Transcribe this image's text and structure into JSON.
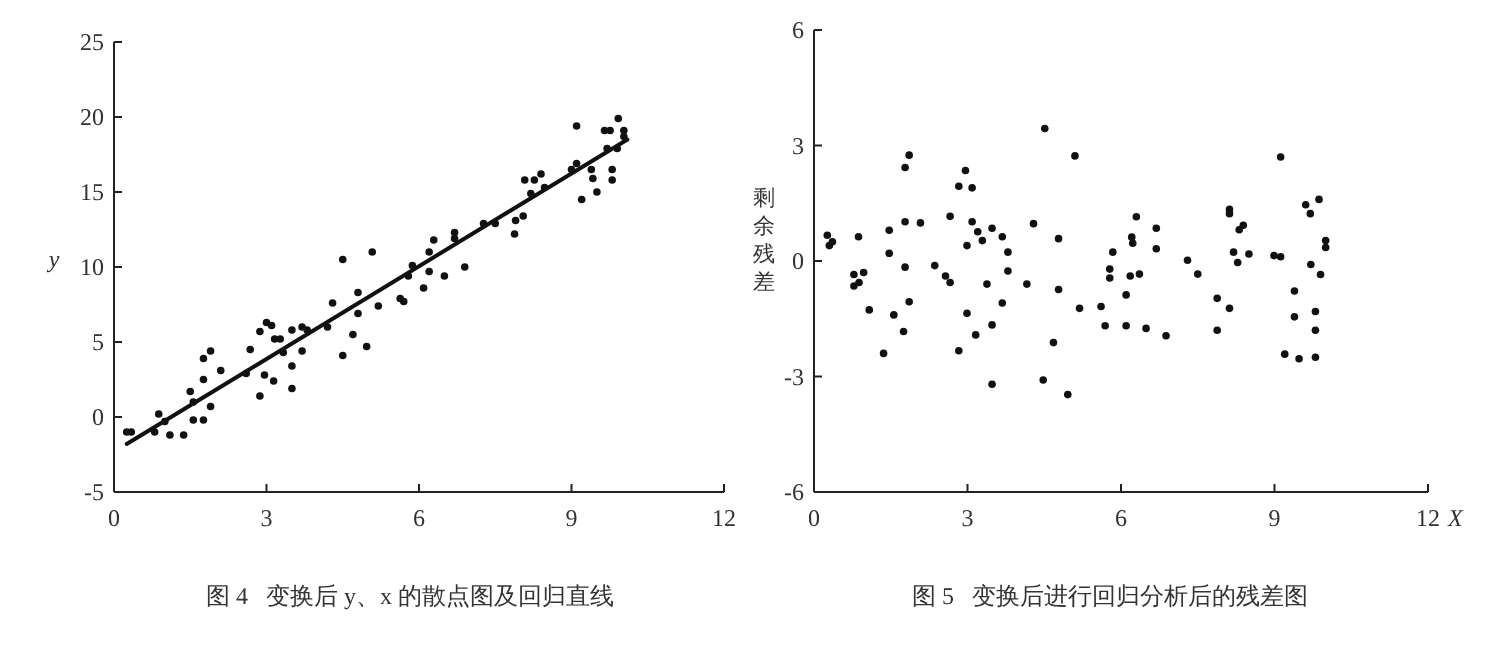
{
  "chart_data": [
    {
      "type": "scatter",
      "title": "图 4   变换后 y、x 的散点图及回归直线",
      "ylabel": "y",
      "xlim": [
        0,
        12
      ],
      "ylim": [
        -5,
        25
      ],
      "xticks": [
        0,
        3,
        6,
        9,
        12
      ],
      "yticks": [
        -5,
        0,
        5,
        10,
        15,
        20,
        25
      ],
      "series": [
        {
          "marker": "circle",
          "color": "#111111",
          "x": [
            0.25,
            0.34,
            0.8,
            0.88,
            1.0,
            1.1,
            1.37,
            1.5,
            1.56,
            1.56,
            1.76,
            1.76,
            1.9,
            1.76,
            1.9,
            2.1,
            2.6,
            2.68,
            2.87,
            2.96,
            3.0,
            3.1,
            2.87,
            3.16,
            3.27,
            3.14,
            3.33,
            3.5,
            3.5,
            3.5,
            3.7,
            3.7,
            3.8,
            4.2,
            4.3,
            4.5,
            4.5,
            4.7,
            4.8,
            4.8,
            4.97,
            5.08,
            5.2,
            5.63,
            5.7,
            5.79,
            5.87,
            6.09,
            6.2,
            6.2,
            6.29,
            6.5,
            6.7,
            6.7,
            6.9,
            7.27,
            7.5,
            7.88,
            7.9,
            8.05,
            8.08,
            8.27,
            8.4,
            8.2,
            8.47,
            9.0,
            9.1,
            9.1,
            9.2,
            9.39,
            9.42,
            9.5,
            9.8,
            9.8,
            9.65,
            9.76,
            9.92,
            10.03,
            10.03,
            9.9,
            9.7
          ],
          "values": [
            -1.0,
            -1.0,
            -1.0,
            0.2,
            -0.3,
            -1.2,
            -1.2,
            1.7,
            1.0,
            -0.2,
            -0.2,
            3.9,
            4.4,
            2.5,
            0.7,
            3.1,
            2.9,
            4.5,
            1.4,
            2.8,
            6.3,
            6.1,
            5.7,
            5.2,
            5.2,
            2.4,
            4.3,
            5.8,
            3.4,
            1.9,
            6.0,
            4.4,
            5.8,
            6.0,
            7.6,
            10.5,
            4.1,
            5.5,
            8.3,
            6.9,
            4.7,
            11.0,
            7.4,
            7.9,
            7.7,
            9.4,
            10.1,
            8.6,
            9.7,
            11.0,
            11.8,
            9.4,
            12.3,
            11.9,
            10.0,
            12.9,
            12.9,
            12.2,
            13.1,
            13.4,
            15.8,
            15.8,
            16.2,
            14.9,
            15.3,
            16.5,
            16.9,
            19.4,
            14.5,
            16.5,
            15.9,
            15.0,
            16.5,
            15.8,
            19.1,
            19.1,
            19.9,
            19.1,
            18.7,
            17.9,
            17.9
          ]
        },
        {
          "type": "line",
          "color": "#111111",
          "line_style": "solid",
          "x": [
            0.25,
            10.1
          ],
          "values": [
            -1.8,
            18.5
          ]
        }
      ]
    },
    {
      "type": "scatter",
      "title": "图 5   变换后进行回归分析后的残差图",
      "xlabel": "X",
      "ylabel": "剩余残差",
      "xlim": [
        0,
        12
      ],
      "ylim": [
        -6,
        6
      ],
      "xticks": [
        0,
        3,
        6,
        9,
        12
      ],
      "yticks": [
        -6,
        -3,
        0,
        3,
        6
      ],
      "series": [
        {
          "marker": "circle",
          "color": "#111111",
          "x": [
            0.26,
            0.3,
            0.36,
            0.78,
            0.78,
            0.88,
            0.87,
            0.97,
            1.08,
            1.36,
            1.47,
            1.47,
            1.56,
            1.75,
            1.78,
            1.78,
            1.78,
            1.86,
            1.86,
            2.08,
            2.36,
            2.57,
            2.66,
            2.66,
            2.83,
            2.83,
            2.96,
            2.99,
            2.99,
            3.09,
            3.09,
            3.16,
            3.2,
            3.29,
            3.38,
            3.48,
            3.48,
            3.48,
            3.68,
            3.68,
            3.79,
            3.79,
            4.16,
            4.29,
            4.48,
            4.51,
            4.68,
            4.78,
            4.78,
            4.96,
            5.1,
            5.19,
            5.61,
            5.69,
            5.78,
            5.78,
            5.84,
            6.1,
            6.18,
            6.21,
            6.23,
            6.3,
            6.36,
            6.1,
            6.49,
            6.69,
            6.69,
            6.88,
            7.3,
            7.5,
            7.88,
            7.88,
            8.12,
            8.12,
            8.12,
            8.2,
            8.28,
            8.31,
            8.39,
            8.5,
            9.12,
            8.99,
            9.12,
            9.2,
            9.39,
            9.39,
            9.48,
            9.61,
            9.7,
            9.71,
            9.8,
            9.8,
            9.8,
            9.87,
            9.9,
            10.0,
            10.0
          ],
          "values": [
            0.67,
            0.4,
            0.5,
            -0.35,
            -0.65,
            -0.56,
            0.63,
            -0.3,
            -1.27,
            -2.4,
            0.2,
            0.8,
            -1.4,
            -1.83,
            -0.16,
            1.02,
            2.43,
            2.75,
            -1.06,
            0.99,
            -0.12,
            -0.39,
            -0.56,
            1.16,
            -2.33,
            1.94,
            2.35,
            0.4,
            -1.36,
            1.9,
            1.02,
            -1.92,
            0.76,
            0.53,
            -0.6,
            0.85,
            -1.66,
            -3.2,
            0.63,
            -1.09,
            0.23,
            -0.26,
            -0.6,
            0.97,
            -3.09,
            3.44,
            -2.12,
            0.58,
            -0.74,
            -3.47,
            2.73,
            -1.23,
            -1.18,
            -1.68,
            -0.21,
            -0.44,
            0.23,
            -1.68,
            -0.39,
            0.62,
            0.46,
            1.15,
            -0.34,
            -0.88,
            -1.75,
            0.85,
            0.32,
            -1.94,
            0.02,
            -0.34,
            -0.97,
            -1.8,
            -1.23,
            1.34,
            1.23,
            0.23,
            -0.04,
            0.81,
            0.93,
            0.18,
            2.7,
            0.14,
            0.11,
            -2.42,
            -0.78,
            -1.45,
            -2.54,
            1.46,
            1.23,
            -0.09,
            -1.31,
            -1.8,
            -2.5,
            1.6,
            -0.35,
            0.53,
            0.35
          ]
        }
      ]
    }
  ]
}
